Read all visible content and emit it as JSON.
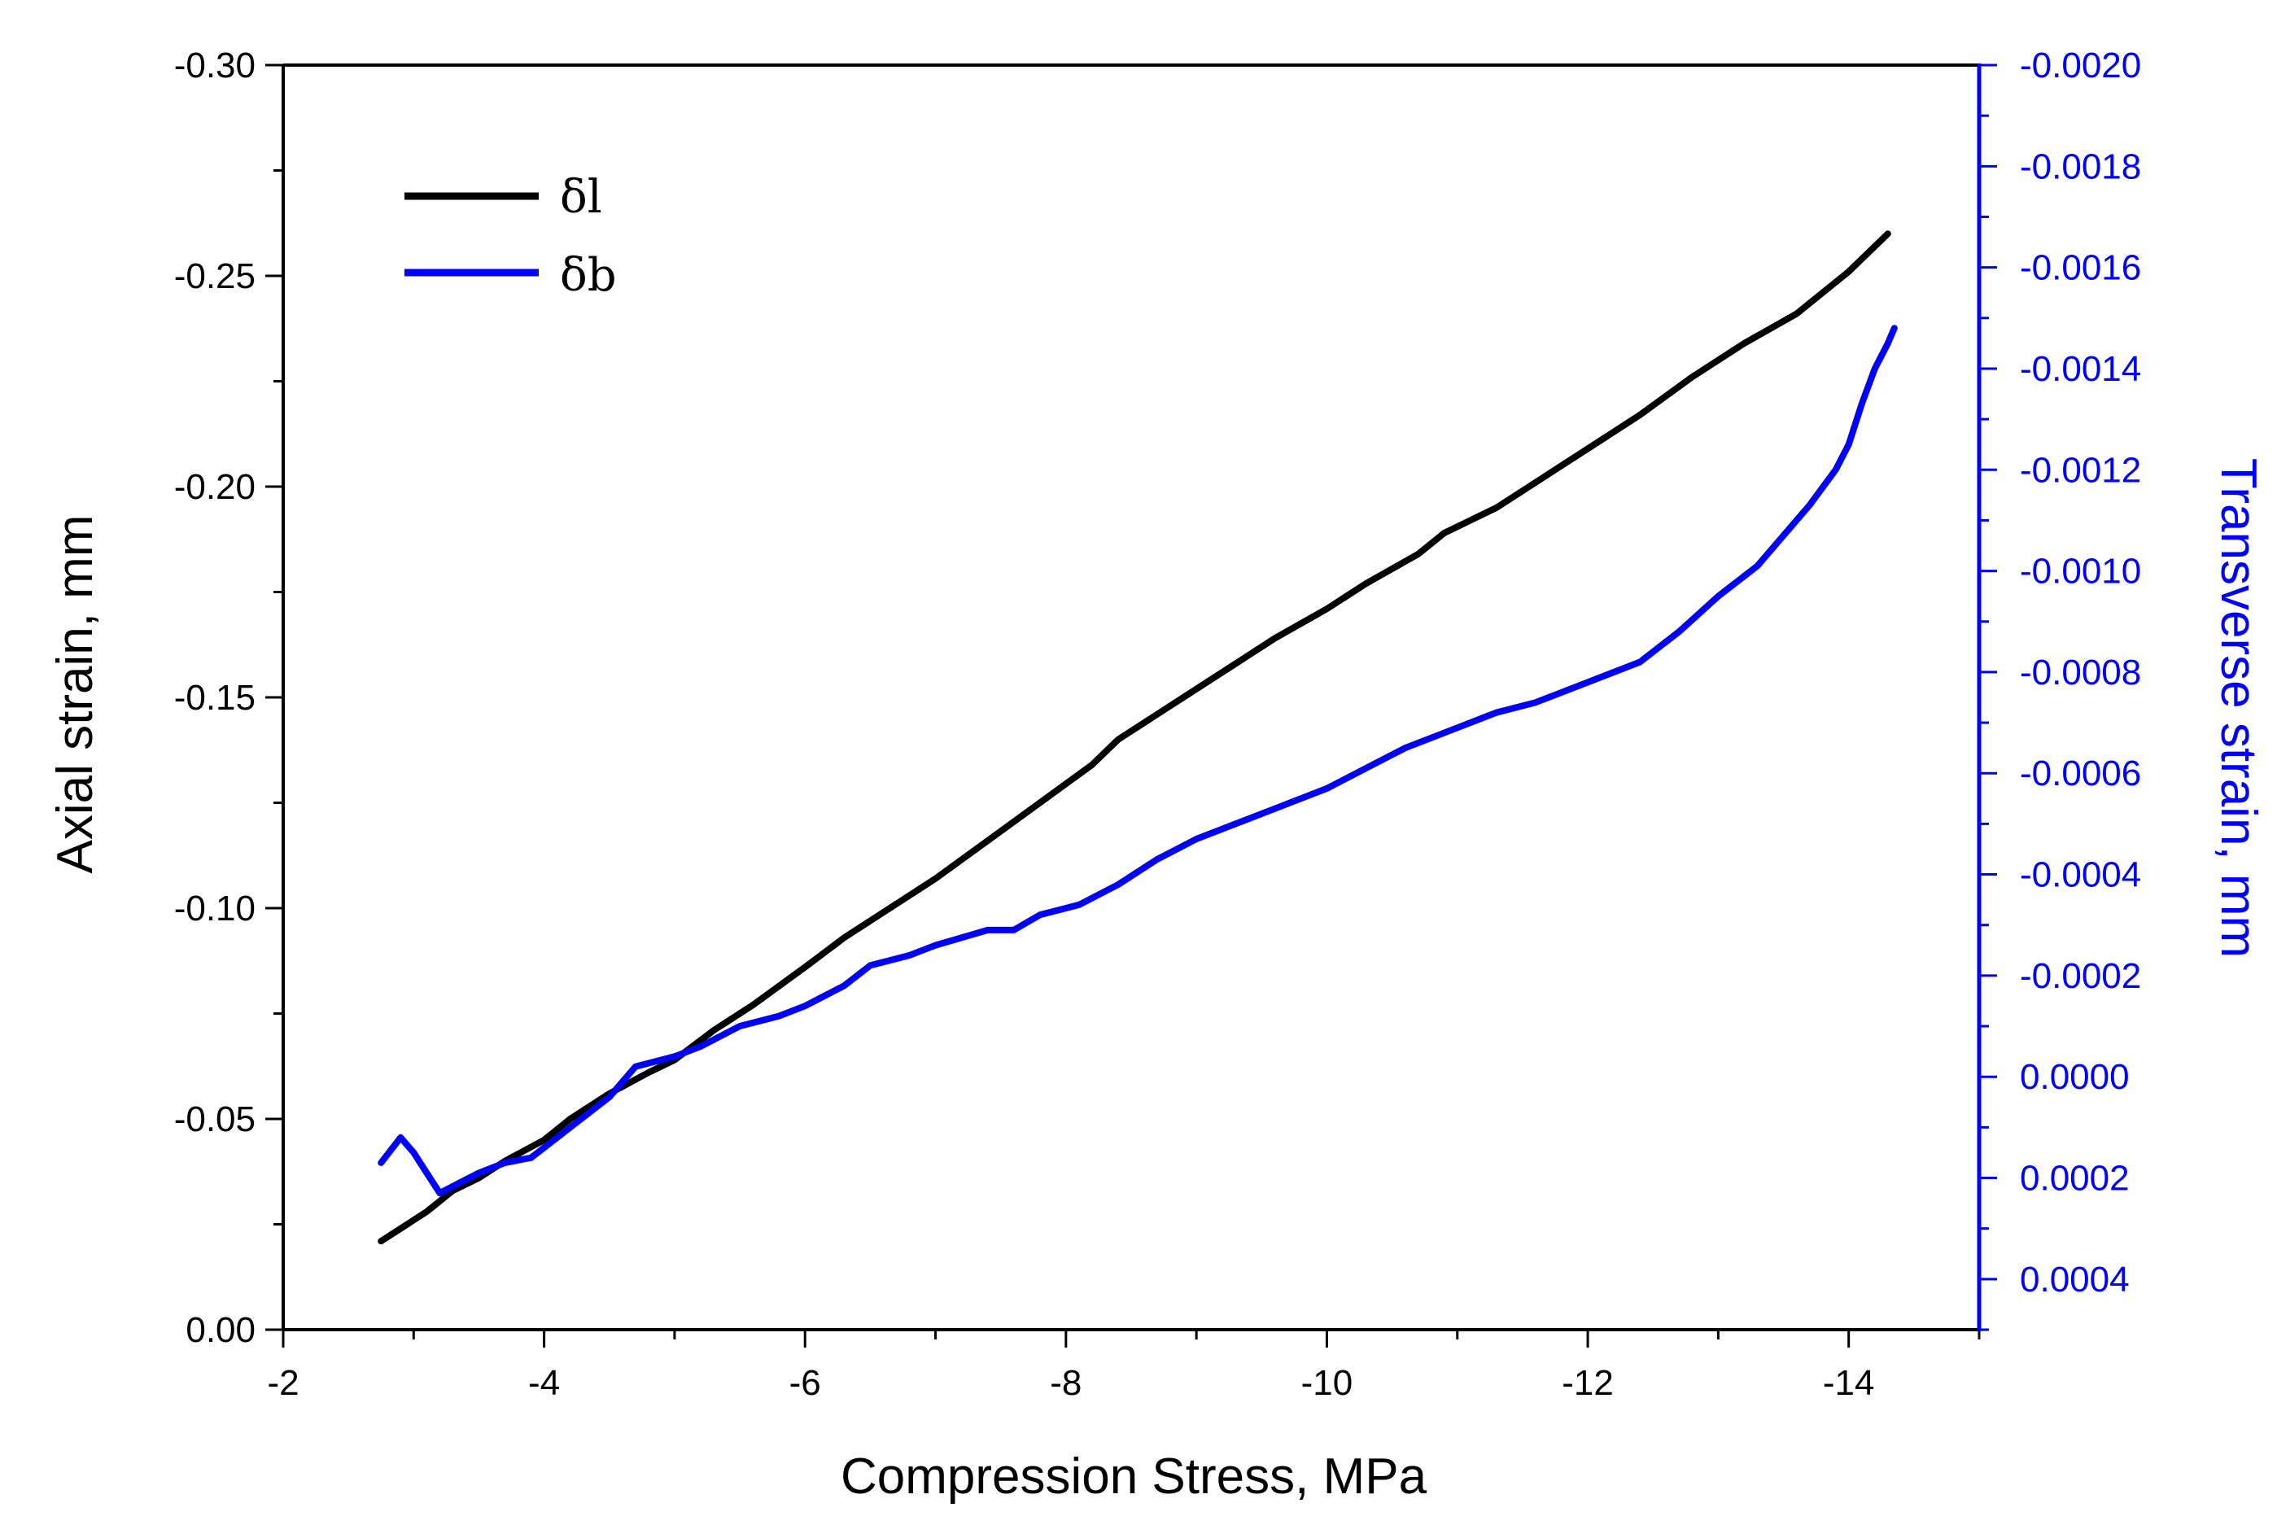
{
  "chart_data": {
    "type": "line",
    "title": "",
    "xlabel": "Compression Stress, MPa",
    "ylabel": "Axial strain, mm",
    "y2label": "Transverse strain, mm",
    "xlim": [
      -2,
      -15
    ],
    "ylim": [
      0,
      -0.3
    ],
    "y2lim": [
      0.0005,
      -0.002
    ],
    "x_ticks": [
      -2,
      -4,
      -6,
      -8,
      -10,
      -12,
      -14
    ],
    "x_tick_labels": [
      "-2",
      "-4",
      "-6",
      "-8",
      "-10",
      "-12",
      "-14"
    ],
    "y_ticks": [
      0,
      -0.05,
      -0.1,
      -0.15,
      -0.2,
      -0.25,
      -0.3
    ],
    "y_tick_labels": [
      "0.00",
      "-0.05",
      "-0.10",
      "-0.15",
      "-0.20",
      "-0.25",
      "-0.30"
    ],
    "y2_ticks": [
      0.0004,
      0.0002,
      0.0,
      -0.0002,
      -0.0004,
      -0.0006,
      -0.0008,
      -0.001,
      -0.0012,
      -0.0014,
      -0.0016,
      -0.0018,
      -0.002
    ],
    "y2_tick_labels": [
      "0.0004",
      "0.0002",
      "0.0000",
      "-0.0002",
      "-0.0004",
      "-0.0006",
      "-0.0008",
      "-0.0010",
      "-0.0012",
      "-0.0014",
      "-0.0016",
      "-0.0018",
      "-0.0020"
    ],
    "grid": false,
    "legend_position": "top-left",
    "colors": {
      "axis": "#000000",
      "y2axis": "#0000ff",
      "series1": "#000000",
      "series2": "#0000ff"
    },
    "series": [
      {
        "name": "δl",
        "axis": "left",
        "color": "#000000",
        "x": [
          -2.75,
          -2.9,
          -3.1,
          -3.3,
          -3.5,
          -3.7,
          -4.0,
          -4.2,
          -4.5,
          -4.8,
          -5.0,
          -5.3,
          -5.6,
          -6.0,
          -6.3,
          -6.6,
          -7.0,
          -7.4,
          -7.8,
          -8.2,
          -8.4,
          -8.7,
          -9.0,
          -9.3,
          -9.6,
          -10.0,
          -10.3,
          -10.7,
          -10.9,
          -11.3,
          -11.6,
          -12.0,
          -12.4,
          -12.8,
          -13.2,
          -13.6,
          -14.0,
          -14.3
        ],
        "values": [
          -0.021,
          -0.024,
          -0.028,
          -0.033,
          -0.036,
          -0.04,
          -0.045,
          -0.05,
          -0.056,
          -0.061,
          -0.064,
          -0.071,
          -0.077,
          -0.086,
          -0.093,
          -0.099,
          -0.107,
          -0.116,
          -0.125,
          -0.134,
          -0.14,
          -0.146,
          -0.152,
          -0.158,
          -0.164,
          -0.171,
          -0.177,
          -0.184,
          -0.189,
          -0.195,
          -0.201,
          -0.209,
          -0.217,
          -0.226,
          -0.234,
          -0.241,
          -0.251,
          -0.26
        ]
      },
      {
        "name": "δb",
        "axis": "right",
        "color": "#0000ff",
        "x": [
          -2.75,
          -2.9,
          -3.0,
          -3.1,
          -3.2,
          -3.35,
          -3.5,
          -3.7,
          -3.9,
          -4.2,
          -4.5,
          -4.7,
          -5.0,
          -5.2,
          -5.5,
          -5.8,
          -6.0,
          -6.3,
          -6.5,
          -6.8,
          -7.0,
          -7.4,
          -7.6,
          -7.8,
          -8.1,
          -8.4,
          -8.7,
          -9.0,
          -9.3,
          -9.6,
          -10.0,
          -10.3,
          -10.6,
          -11.0,
          -11.3,
          -11.6,
          -12.0,
          -12.4,
          -12.7,
          -13.0,
          -13.3,
          -13.5,
          -13.7,
          -13.9,
          -14.0,
          -14.1,
          -14.2,
          -14.3,
          -14.35
        ],
        "values": [
          0.00017,
          0.00012,
          0.00015,
          0.00019,
          0.00023,
          0.00021,
          0.00019,
          0.00017,
          0.00016,
          0.0001,
          4e-05,
          -2e-05,
          -4e-05,
          -6e-05,
          -0.0001,
          -0.00012,
          -0.00014,
          -0.00018,
          -0.00022,
          -0.00024,
          -0.00026,
          -0.00029,
          -0.00029,
          -0.00032,
          -0.00034,
          -0.00038,
          -0.00043,
          -0.00047,
          -0.0005,
          -0.00053,
          -0.00057,
          -0.00061,
          -0.00065,
          -0.00069,
          -0.00072,
          -0.00074,
          -0.00078,
          -0.00082,
          -0.00088,
          -0.00095,
          -0.00101,
          -0.00107,
          -0.00113,
          -0.0012,
          -0.00125,
          -0.00133,
          -0.0014,
          -0.00145,
          -0.00148
        ]
      }
    ]
  }
}
